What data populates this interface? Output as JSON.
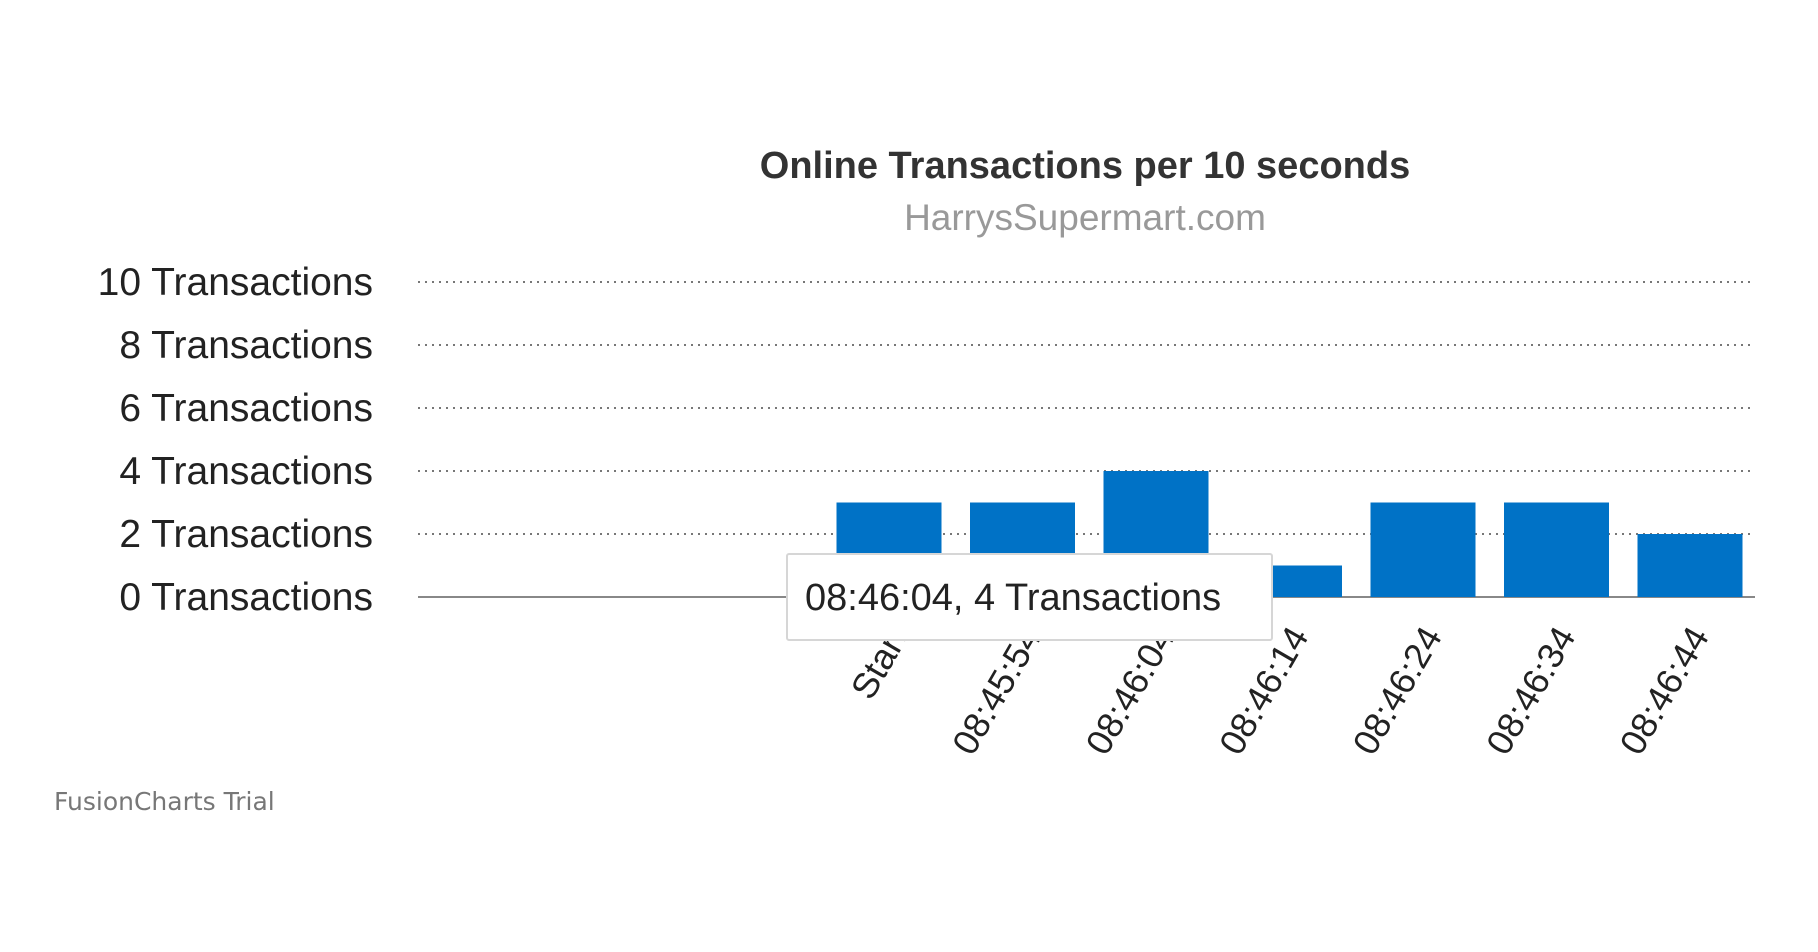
{
  "chart_data": {
    "type": "bar",
    "title": "Online Transactions per 10 seconds",
    "subtitle": "HarrysSupermart.com",
    "categories": [
      "Start",
      "08:45:54",
      "08:46:04",
      "08:46:14",
      "08:46:24",
      "08:46:34",
      "08:46:44"
    ],
    "values": [
      3,
      3,
      4,
      1,
      3,
      3,
      2
    ],
    "y_ticks": [
      0,
      2,
      4,
      6,
      8,
      10
    ],
    "y_tick_suffix": " Transactions",
    "ylim": [
      0,
      10
    ],
    "grid": true,
    "bar_color": "#0072c6",
    "tooltip": {
      "text": "08:46:04, 4 Transactions"
    }
  },
  "watermark": "FusionCharts Trial"
}
